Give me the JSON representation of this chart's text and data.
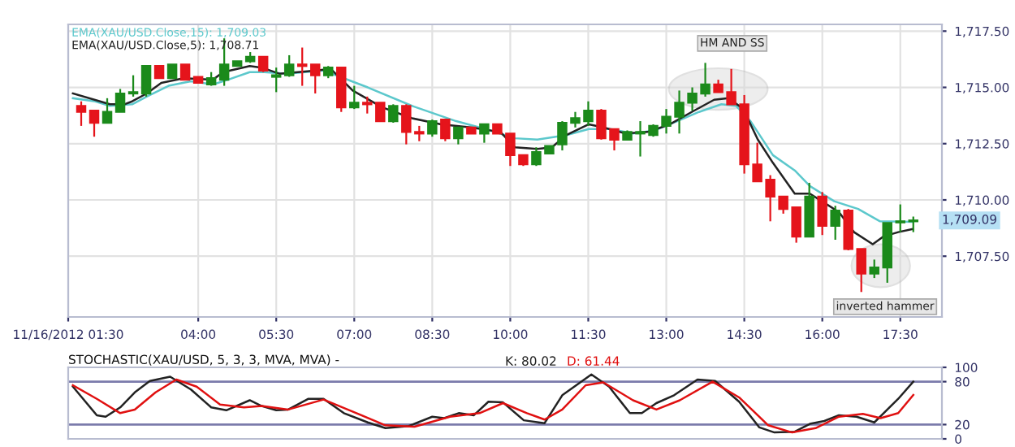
{
  "chart_data": [
    {
      "type": "candlestick",
      "x": [
        1.75,
        2,
        2.25,
        2.5,
        2.75,
        3,
        3.25,
        3.5,
        3.75,
        4,
        4.25,
        4.5,
        4.75,
        5,
        5.25,
        5.5,
        5.75,
        6,
        6.25,
        6.5,
        6.75,
        7,
        7.25,
        7.5,
        7.75,
        8,
        8.25,
        8.5,
        8.75,
        9,
        9.25,
        9.5,
        9.75,
        10,
        10.25,
        10.5,
        10.75,
        11,
        11.25,
        11.5,
        11.75,
        12,
        12.25,
        12.5,
        12.75,
        13,
        13.25,
        13.5,
        13.75,
        14,
        14.25,
        14.5,
        14.75,
        15,
        15.25,
        15.5,
        15.75,
        16,
        16.25,
        16.5,
        16.75,
        17,
        17.25,
        17.5,
        17.75
      ],
      "ohlc": [
        [
          1714.18,
          1714.38,
          1713.29,
          1713.91
        ],
        [
          1713.97,
          1713.97,
          1712.81,
          1713.43
        ],
        [
          1713.43,
          1714.52,
          1713.43,
          1713.91
        ],
        [
          1713.91,
          1714.93,
          1713.91,
          1714.73
        ],
        [
          1714.73,
          1715.54,
          1714.59,
          1714.79
        ],
        [
          1714.73,
          1715.95,
          1714.59,
          1715.95
        ],
        [
          1715.95,
          1715.95,
          1715.41,
          1715.41
        ],
        [
          1715.41,
          1716.02,
          1715.41,
          1716.02
        ],
        [
          1716.02,
          1716.02,
          1715.34,
          1715.34
        ],
        [
          1715.47,
          1715.47,
          1715.2,
          1715.2
        ],
        [
          1715.13,
          1715.68,
          1715.07,
          1715.41
        ],
        [
          1715.34,
          1717.18,
          1715.07,
          1716.02
        ],
        [
          1715.95,
          1716.16,
          1715.95,
          1716.16
        ],
        [
          1716.16,
          1716.57,
          1716.09,
          1716.36
        ],
        [
          1716.36,
          1716.36,
          1715.68,
          1715.75
        ],
        [
          1715.47,
          1715.88,
          1714.79,
          1715.54
        ],
        [
          1715.54,
          1716.43,
          1715.47,
          1716.02
        ],
        [
          1716.02,
          1716.77,
          1715.07,
          1715.95
        ],
        [
          1716.02,
          1716.02,
          1714.73,
          1715.54
        ],
        [
          1715.54,
          1715.95,
          1715.41,
          1715.88
        ],
        [
          1715.88,
          1715.88,
          1713.91,
          1714.11
        ],
        [
          1714.11,
          1715.07,
          1714.04,
          1714.32
        ],
        [
          1714.32,
          1714.59,
          1713.84,
          1714.25
        ],
        [
          1714.32,
          1714.32,
          1713.5,
          1713.5
        ],
        [
          1713.5,
          1714.25,
          1713.43,
          1714.18
        ],
        [
          1714.18,
          1714.25,
          1712.47,
          1713.02
        ],
        [
          1713.02,
          1713.29,
          1712.61,
          1712.95
        ],
        [
          1712.95,
          1713.57,
          1712.81,
          1713.5
        ],
        [
          1713.57,
          1713.57,
          1712.61,
          1712.74
        ],
        [
          1712.74,
          1713.22,
          1712.47,
          1713.22
        ],
        [
          1713.22,
          1713.22,
          1712.95,
          1712.95
        ],
        [
          1712.95,
          1713.36,
          1712.54,
          1713.36
        ],
        [
          1713.36,
          1713.36,
          1712.95,
          1712.95
        ],
        [
          1712.95,
          1712.95,
          1711.51,
          1711.99
        ],
        [
          1711.99,
          1711.99,
          1711.51,
          1711.58
        ],
        [
          1711.58,
          1712.34,
          1711.51,
          1712.13
        ],
        [
          1712.06,
          1712.4,
          1712.06,
          1712.4
        ],
        [
          1712.47,
          1713.5,
          1712.2,
          1713.43
        ],
        [
          1713.43,
          1713.91,
          1713.22,
          1713.63
        ],
        [
          1713.5,
          1714.38,
          1713.29,
          1713.97
        ],
        [
          1713.97,
          1714.04,
          1712.68,
          1712.74
        ],
        [
          1713.15,
          1713.15,
          1712.2,
          1712.68
        ],
        [
          1712.68,
          1713.09,
          1712.68,
          1713.02
        ],
        [
          1712.95,
          1713.5,
          1711.93,
          1713.02
        ],
        [
          1712.88,
          1713.36,
          1712.81,
          1713.29
        ],
        [
          1713.29,
          1714.04,
          1712.95,
          1713.7
        ],
        [
          1713.7,
          1714.86,
          1712.95,
          1714.32
        ],
        [
          1714.32,
          1715.0,
          1713.97,
          1714.73
        ],
        [
          1714.73,
          1716.09,
          1714.59,
          1715.13
        ],
        [
          1715.13,
          1715.34,
          1714.79,
          1714.79
        ],
        [
          1714.79,
          1715.82,
          1714.25,
          1714.25
        ],
        [
          1714.25,
          1714.66,
          1711.17,
          1711.58
        ],
        [
          1711.58,
          1712.54,
          1710.83,
          1710.83
        ],
        [
          1710.9,
          1711.1,
          1709.05,
          1710.15
        ],
        [
          1710.15,
          1710.15,
          1709.39,
          1709.6
        ],
        [
          1709.67,
          1709.67,
          1708.1,
          1708.37
        ],
        [
          1708.37,
          1710.76,
          1708.37,
          1710.15
        ],
        [
          1710.15,
          1710.35,
          1708.44,
          1708.85
        ],
        [
          1708.85,
          1709.74,
          1708.23,
          1709.53
        ],
        [
          1709.53,
          1709.6,
          1707.76,
          1707.82
        ],
        [
          1707.82,
          1707.82,
          1705.91,
          1706.73
        ],
        [
          1706.73,
          1707.35,
          1706.53,
          1707.0
        ],
        [
          1707.0,
          1708.98,
          1706.32,
          1708.98
        ],
        [
          1709.0,
          1709.8,
          1708.57,
          1709.05
        ],
        [
          1709.05,
          1709.26,
          1708.57,
          1709.09
        ]
      ],
      "colors": [
        "#e5141b",
        "#e5141b",
        "#1b8a1b",
        "#1b8a1b",
        "#1b8a1b",
        "#1b8a1b",
        "#e5141b",
        "#1b8a1b",
        "#e5141b",
        "#e5141b",
        "#1b8a1b",
        "#1b8a1b",
        "#1b8a1b",
        "#1b8a1b",
        "#e5141b",
        "#1b8a1b",
        "#1b8a1b",
        "#e5141b",
        "#e5141b",
        "#1b8a1b",
        "#e5141b",
        "#1b8a1b",
        "#e5141b",
        "#e5141b",
        "#1b8a1b",
        "#e5141b",
        "#e5141b",
        "#1b8a1b",
        "#e5141b",
        "#1b8a1b",
        "#e5141b",
        "#1b8a1b",
        "#e5141b",
        "#e5141b",
        "#e5141b",
        "#1b8a1b",
        "#1b8a1b",
        "#1b8a1b",
        "#1b8a1b",
        "#1b8a1b",
        "#e5141b",
        "#e5141b",
        "#1b8a1b",
        "#1b8a1b",
        "#1b8a1b",
        "#1b8a1b",
        "#1b8a1b",
        "#1b8a1b",
        "#1b8a1b",
        "#e5141b",
        "#e5141b",
        "#e5141b",
        "#e5141b",
        "#e5141b",
        "#e5141b",
        "#e5141b",
        "#1b8a1b",
        "#e5141b",
        "#1b8a1b",
        "#e5141b",
        "#e5141b",
        "#1b8a1b",
        "#1b8a1b",
        "#1b8a1b",
        "#1b8a1b"
      ],
      "series": [
        {
          "type": "line",
          "name": "EMA(XAU/USD.Close,15): 1,709.03",
          "color": "#5cc8cc",
          "x": [
            1.59,
            2.02,
            2.3,
            2.73,
            3.01,
            3.43,
            3.86,
            4.28,
            4.57,
            4.99,
            5.27,
            5.7,
            6.41,
            7.26,
            8.11,
            8.96,
            9.52,
            10.09,
            10.52,
            11.08,
            11.51,
            11.93,
            12.36,
            12.78,
            13.21,
            13.63,
            14.06,
            14.34,
            14.62,
            15.05,
            15.47,
            15.76,
            16.23,
            16.69,
            17.11,
            17.74
          ],
          "values": [
            1714.52,
            1714.38,
            1714.18,
            1714.25,
            1714.59,
            1715.07,
            1715.27,
            1715.13,
            1715.34,
            1715.68,
            1715.68,
            1715.61,
            1715.75,
            1715.0,
            1714.18,
            1713.5,
            1713.15,
            1712.74,
            1712.68,
            1712.88,
            1713.15,
            1713.15,
            1712.95,
            1713.09,
            1713.5,
            1713.91,
            1714.25,
            1714.18,
            1713.5,
            1711.99,
            1711.31,
            1710.62,
            1709.94,
            1709.6,
            1709.05,
            1709.03
          ]
        },
        {
          "type": "line",
          "name": "EMA(XAU/USD.Close,5): 1,708.71",
          "color": "#222222",
          "x": [
            1.59,
            2.3,
            2.58,
            2.73,
            3.01,
            3.29,
            3.72,
            4.28,
            4.48,
            4.99,
            5.22,
            5.56,
            6.27,
            6.55,
            6.97,
            7.54,
            8.11,
            8.67,
            9.24,
            9.81,
            10.09,
            10.52,
            10.8,
            11.08,
            11.51,
            11.79,
            12.22,
            12.64,
            13.07,
            13.49,
            13.92,
            14.2,
            14.48,
            14.76,
            15.05,
            15.47,
            15.76,
            16.04,
            16.32,
            16.61,
            16.97,
            17.17,
            17.46,
            17.74
          ],
          "values": [
            1714.73,
            1714.25,
            1714.25,
            1714.38,
            1714.73,
            1715.2,
            1715.41,
            1715.34,
            1715.68,
            1715.95,
            1715.88,
            1715.61,
            1715.75,
            1715.82,
            1714.86,
            1714.11,
            1713.63,
            1713.36,
            1713.22,
            1713.02,
            1712.34,
            1712.27,
            1712.34,
            1712.88,
            1713.36,
            1713.22,
            1712.95,
            1713.02,
            1713.36,
            1713.91,
            1714.45,
            1714.52,
            1714.04,
            1712.68,
            1711.65,
            1710.28,
            1710.28,
            1709.87,
            1709.46,
            1708.57,
            1708.03,
            1708.37,
            1708.57,
            1708.71
          ]
        }
      ],
      "xlim": [
        1.5,
        18.3
      ],
      "xticks": [
        {
          "value": 1.5,
          "label": "11/16/2012 01:30"
        },
        {
          "value": 4,
          "label": "04:00"
        },
        {
          "value": 5.5,
          "label": "05:30"
        },
        {
          "value": 7,
          "label": "07:00"
        },
        {
          "value": 8.5,
          "label": "08:30"
        },
        {
          "value": 10,
          "label": "10:00"
        },
        {
          "value": 11.5,
          "label": "11:30"
        },
        {
          "value": 13,
          "label": "13:00"
        },
        {
          "value": 14.5,
          "label": "14:30"
        },
        {
          "value": 16,
          "label": "16:00"
        },
        {
          "value": 17.5,
          "label": "17:30"
        }
      ],
      "ylim": [
        1704.8,
        1717.8
      ],
      "yticks": [
        {
          "value": 1707.5,
          "label": "1,707.50"
        },
        {
          "value": 1710,
          "label": "1,710.00"
        },
        {
          "value": 1712.5,
          "label": "1,712.50"
        },
        {
          "value": 1715,
          "label": "1,715.00"
        },
        {
          "value": 1717.5,
          "label": "1,717.50"
        }
      ],
      "grid": true,
      "legend": "top left",
      "annotations": [
        "HM AND SS",
        "inverted hammer",
        "1,709.09"
      ]
    },
    {
      "type": "line",
      "title": "STOCHASTIC(XAU/USD, 5, 3, 3, MVA, MVA) -",
      "series": [
        {
          "name": "K: 80.02",
          "color": "#222222",
          "x": [
            1.59,
            2.05,
            2.22,
            2.5,
            2.78,
            3.07,
            3.46,
            3.86,
            4.25,
            4.54,
            4.99,
            5.22,
            5.5,
            5.73,
            6.12,
            6.41,
            6.8,
            7.26,
            7.6,
            8.05,
            8.5,
            8.73,
            9.01,
            9.3,
            9.58,
            9.86,
            10.26,
            10.66,
            11.0,
            11.56,
            11.9,
            12.3,
            12.53,
            12.81,
            13.15,
            13.6,
            13.94,
            14.4,
            14.79,
            15.08,
            15.47,
            15.76,
            16.04,
            16.32,
            16.66,
            17.0,
            17.46,
            17.75
          ],
          "values": [
            73,
            33,
            31,
            44,
            65,
            81,
            87,
            69,
            44,
            40,
            54,
            46,
            40,
            41,
            56,
            56,
            36,
            23,
            15,
            18,
            31,
            29,
            36,
            33,
            52,
            51,
            26,
            22,
            61,
            90,
            73,
            36,
            36,
            50,
            61,
            83,
            81,
            52,
            16,
            9,
            10,
            21,
            25,
            33,
            31,
            23,
            56,
            80.02
          ]
        },
        {
          "name": "D: 61.44",
          "color": "#e01010",
          "x": [
            1.59,
            2.05,
            2.5,
            2.78,
            3.18,
            3.58,
            3.97,
            4.42,
            4.88,
            5.22,
            5.73,
            6.41,
            6.91,
            7.6,
            8.16,
            8.84,
            9.41,
            9.86,
            10.32,
            10.66,
            11.0,
            11.45,
            11.79,
            12.36,
            12.81,
            13.26,
            13.89,
            14.4,
            14.96,
            15.42,
            15.87,
            16.32,
            16.78,
            17.12,
            17.46,
            17.75
          ],
          "values": [
            75,
            56,
            36,
            41,
            65,
            83,
            73,
            48,
            44,
            46,
            41,
            55,
            40,
            19,
            17,
            31,
            36,
            50,
            36,
            27,
            41,
            75,
            79,
            54,
            41,
            54,
            80,
            58,
            19,
            9,
            15,
            31,
            35,
            29,
            36,
            61.44
          ]
        }
      ],
      "xlim": [
        1.5,
        18.3
      ],
      "ylim": [
        0,
        100
      ],
      "yticks": [
        0,
        20,
        80,
        100
      ],
      "tick_labels": "y",
      "legend": "top",
      "ref_lines": [
        {
          "axis": "y",
          "value": 80,
          "color": "#7b7bab"
        },
        {
          "axis": "y",
          "value": 20,
          "color": "#7b7bab"
        }
      ]
    }
  ]
}
